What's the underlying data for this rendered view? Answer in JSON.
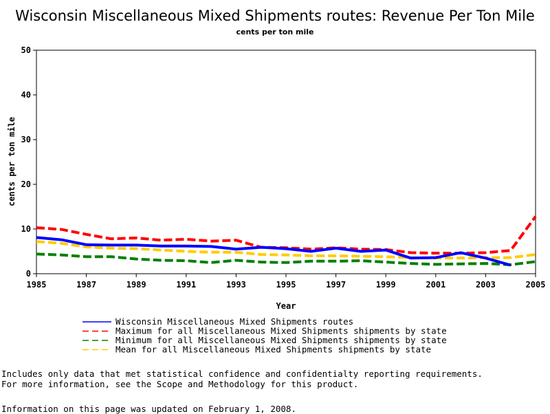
{
  "chart_data": {
    "type": "line",
    "title": "Wisconsin Miscellaneous Mixed Shipments routes: Revenue Per Ton Mile",
    "subtitle": "cents per ton mile",
    "xlabel": "Year",
    "ylabel": "cents per ton mile",
    "xlim": [
      1985,
      2005
    ],
    "ylim": [
      0,
      50
    ],
    "x_ticks": [
      "1985",
      "1987",
      "1989",
      "1991",
      "1993",
      "1995",
      "1997",
      "1999",
      "2001",
      "2003",
      "2005"
    ],
    "y_ticks": [
      "0",
      "10",
      "20",
      "30",
      "40",
      "50"
    ],
    "x": [
      1985,
      1986,
      1987,
      1988,
      1989,
      1990,
      1991,
      1992,
      1993,
      1994,
      1995,
      1996,
      1997,
      1998,
      1999,
      2000,
      2001,
      2002,
      2003,
      2004,
      2005
    ],
    "series": [
      {
        "name": "Wisconsin Miscellaneous Mixed Shipments routes",
        "color": "#0000ff",
        "dash": "solid",
        "values": [
          8.1,
          7.6,
          6.5,
          6.4,
          6.4,
          6.2,
          6.2,
          6.1,
          5.5,
          5.9,
          5.6,
          5.0,
          5.7,
          5.0,
          5.3,
          3.5,
          3.6,
          4.7,
          3.5,
          1.9,
          null
        ]
      },
      {
        "name": "Maximum for all Miscellaneous Mixed Shipments shipments by state",
        "color": "#ff0000",
        "dash": "dashed",
        "values": [
          10.3,
          9.9,
          8.8,
          7.8,
          8.0,
          7.5,
          7.7,
          7.3,
          7.5,
          5.9,
          5.8,
          5.5,
          5.8,
          5.5,
          5.4,
          4.7,
          4.6,
          4.6,
          4.7,
          5.2,
          12.8
        ]
      },
      {
        "name": "Minimum for all Miscellaneous Mixed Shipments shipments by state",
        "color": "#008000",
        "dash": "dashed",
        "values": [
          4.4,
          4.2,
          3.8,
          3.8,
          3.3,
          3.0,
          2.9,
          2.5,
          3.0,
          2.6,
          2.5,
          2.8,
          2.8,
          2.9,
          2.6,
          2.3,
          2.1,
          2.2,
          2.3,
          2.0,
          2.7
        ]
      },
      {
        "name": "Mean for all Miscellaneous Mixed Shipments shipments by state",
        "color": "#ffcc00",
        "dash": "dashed",
        "values": [
          7.2,
          6.8,
          6.0,
          5.7,
          5.6,
          5.3,
          5.0,
          4.8,
          4.8,
          4.3,
          4.2,
          4.0,
          4.0,
          3.9,
          3.8,
          3.6,
          3.5,
          3.5,
          3.6,
          3.6,
          4.3
        ]
      }
    ],
    "grid": false,
    "legend_position": "bottom"
  },
  "notes": [
    "Includes only data that met statistical confidence and confidentialty reporting requirements.",
    "For more information, see the Scope and Methodology for this product."
  ],
  "updated": "Information on this page was updated on February 1, 2008."
}
